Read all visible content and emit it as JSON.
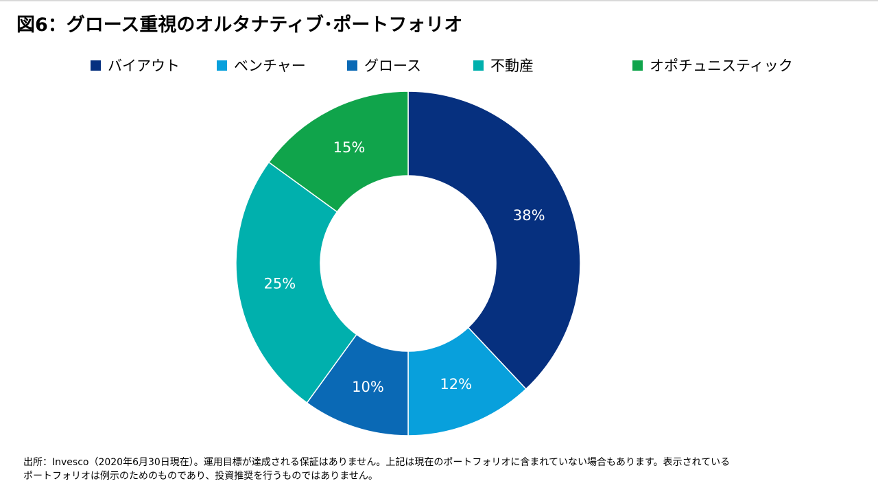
{
  "title": "図6：グロース重視のオルタナティブ･ポートフォリオ",
  "source": {
    "line1": "出所：Invesco（2020年6月30日現在）。運用目標が達成される保証はありません。上記は現在のポートフォリオに含まれていない場合もあります。表示されている",
    "line2": "ポートフォリオは例示のためのものであり、投資推奨を行うものではありません。"
  },
  "chart_data": {
    "type": "pie",
    "variant": "donut",
    "categories": [
      "バイアウト",
      "ベンチャー",
      "グロース",
      "不動産",
      "オポチュニスティック"
    ],
    "values": [
      38,
      12,
      10,
      25,
      15
    ],
    "value_labels": [
      "38%",
      "12%",
      "10%",
      "25%",
      "15%"
    ],
    "colors": [
      "#06307f",
      "#08a0dc",
      "#0a69b5",
      "#00b0ad",
      "#10a44b"
    ],
    "legend_position": "top",
    "start_angle": "12 o'clock",
    "direction": "clockwise"
  }
}
